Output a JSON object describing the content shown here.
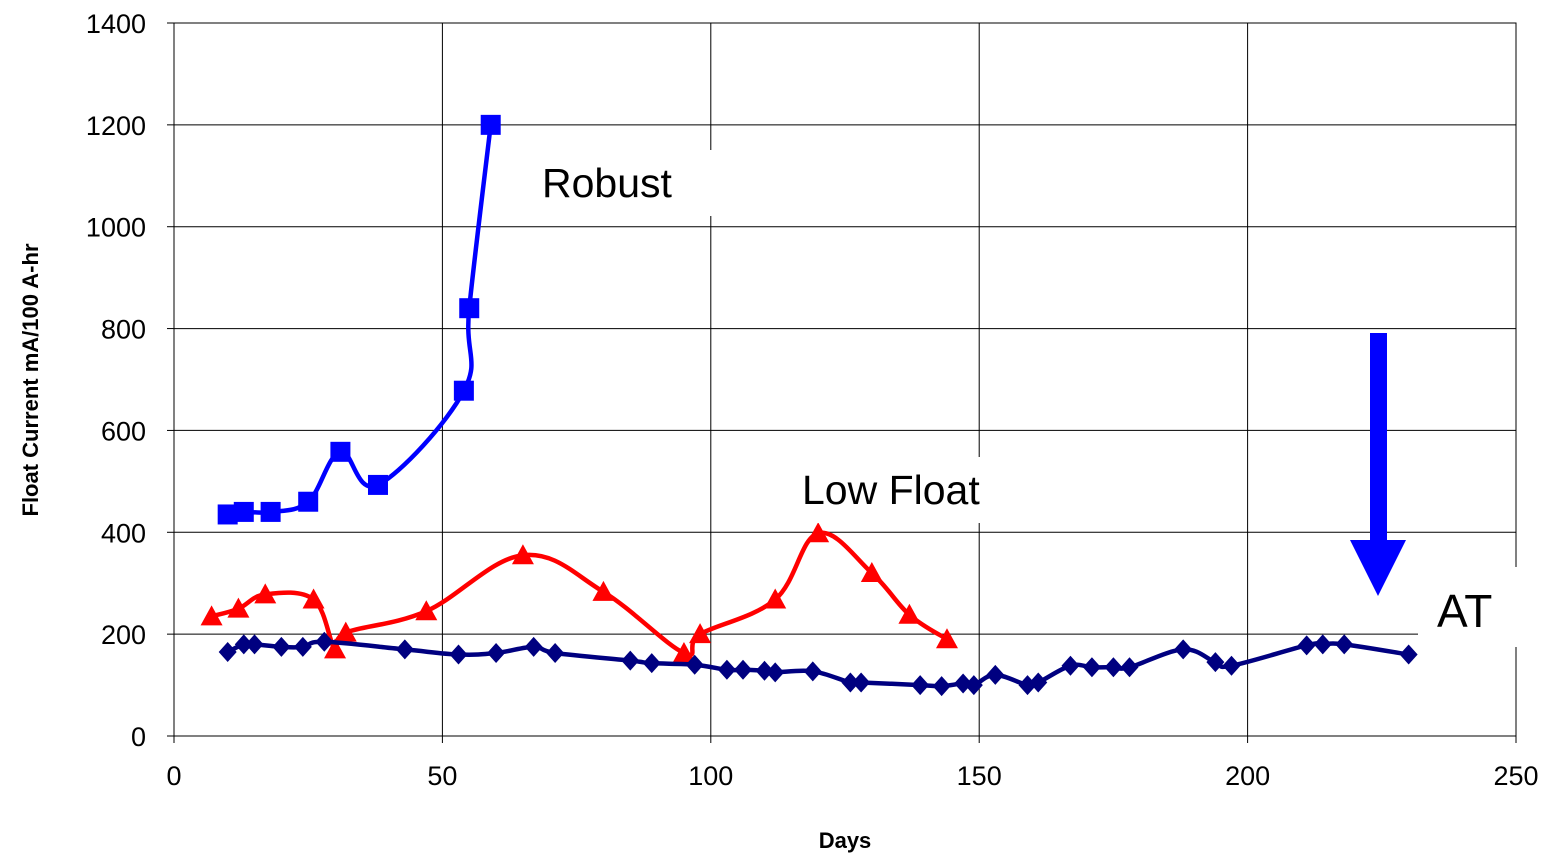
{
  "chart_data": {
    "type": "line",
    "title": "",
    "xlabel": "Days",
    "ylabel": "Float Current mA/100 A-hr",
    "xlim": [
      0,
      250
    ],
    "ylim": [
      0,
      1400
    ],
    "xticks": [
      0,
      50,
      100,
      150,
      200,
      250
    ],
    "yticks": [
      0,
      200,
      400,
      600,
      800,
      1000,
      1200,
      1400
    ],
    "grid": true,
    "legend": "none",
    "series": [
      {
        "marker": "square",
        "color": "#0000ff",
        "points": [
          [
            10,
            435
          ],
          [
            13,
            440
          ],
          [
            18,
            440
          ],
          [
            25,
            460
          ],
          [
            31,
            558
          ],
          [
            38,
            493
          ],
          [
            54,
            678
          ],
          [
            55,
            840
          ],
          [
            59,
            1200
          ]
        ]
      },
      {
        "marker": "triangle",
        "color": "#ff0000",
        "points": [
          [
            7,
            235
          ],
          [
            12,
            250
          ],
          [
            17,
            278
          ],
          [
            26,
            268
          ],
          [
            30,
            170
          ],
          [
            32,
            203
          ],
          [
            47,
            245
          ],
          [
            65,
            355
          ],
          [
            80,
            283
          ],
          [
            95,
            163
          ],
          [
            98,
            200
          ],
          [
            112,
            268
          ],
          [
            120,
            398
          ],
          [
            130,
            320
          ],
          [
            137,
            238
          ],
          [
            144,
            190
          ]
        ]
      },
      {
        "marker": "diamond",
        "color": "#000080",
        "points": [
          [
            10,
            165
          ],
          [
            13,
            180
          ],
          [
            15,
            180
          ],
          [
            20,
            175
          ],
          [
            24,
            175
          ],
          [
            28,
            185
          ],
          [
            43,
            170
          ],
          [
            53,
            160
          ],
          [
            60,
            163
          ],
          [
            67,
            175
          ],
          [
            71,
            163
          ],
          [
            85,
            148
          ],
          [
            89,
            143
          ],
          [
            97,
            140
          ],
          [
            103,
            130
          ],
          [
            106,
            130
          ],
          [
            110,
            128
          ],
          [
            112,
            125
          ],
          [
            119,
            127
          ],
          [
            126,
            105
          ],
          [
            128,
            105
          ],
          [
            139,
            100
          ],
          [
            143,
            98
          ],
          [
            147,
            103
          ],
          [
            149,
            100
          ],
          [
            153,
            120
          ],
          [
            159,
            100
          ],
          [
            161,
            105
          ],
          [
            167,
            138
          ],
          [
            171,
            135
          ],
          [
            175,
            135
          ],
          [
            178,
            135
          ],
          [
            188,
            170
          ],
          [
            194,
            145
          ],
          [
            197,
            138
          ],
          [
            211,
            178
          ],
          [
            214,
            180
          ],
          [
            218,
            180
          ],
          [
            230,
            160
          ]
        ]
      }
    ],
    "annotations": [
      {
        "text": "Robust"
      },
      {
        "text": "Low Float"
      },
      {
        "text": "AT"
      }
    ],
    "arrow": {
      "color": "#0000ff",
      "direction": "down"
    }
  }
}
